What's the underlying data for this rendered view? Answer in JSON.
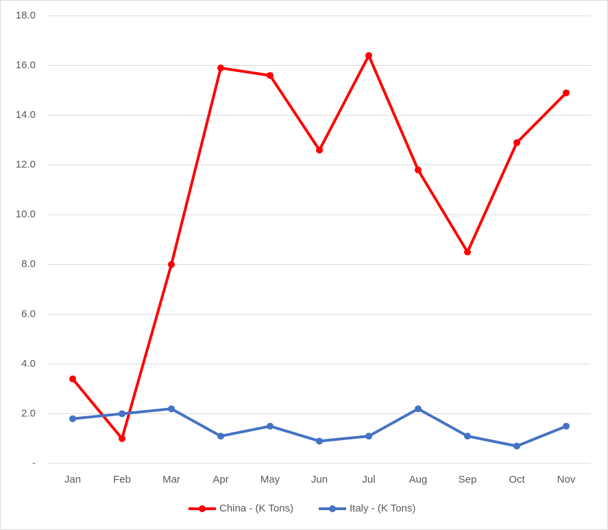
{
  "chart_data": {
    "type": "line",
    "categories": [
      "Jan",
      "Feb",
      "Mar",
      "Apr",
      "May",
      "Jun",
      "Jul",
      "Aug",
      "Sep",
      "Oct",
      "Nov"
    ],
    "series": [
      {
        "name": "China - (K Tons)",
        "color": "#ff0000",
        "values": [
          3.4,
          1.0,
          8.0,
          15.9,
          15.6,
          12.6,
          16.4,
          11.8,
          8.5,
          12.9,
          14.9
        ]
      },
      {
        "name": "Italy - (K Tons)",
        "color": "#4472c4",
        "values": [
          1.8,
          2.0,
          2.2,
          1.1,
          1.5,
          0.9,
          1.1,
          2.2,
          1.1,
          0.7,
          1.5
        ]
      }
    ],
    "ylim": [
      0,
      18
    ],
    "yticks": [
      {
        "value": 0,
        "label": "-"
      },
      {
        "value": 2,
        "label": "2.0"
      },
      {
        "value": 4,
        "label": "4.0"
      },
      {
        "value": 6,
        "label": "6.0"
      },
      {
        "value": 8,
        "label": "8.0"
      },
      {
        "value": 10,
        "label": "10.0"
      },
      {
        "value": 12,
        "label": "12.0"
      },
      {
        "value": 14,
        "label": "14.0"
      },
      {
        "value": 16,
        "label": "16.0"
      },
      {
        "value": 18,
        "label": "18.0"
      }
    ],
    "grid": true,
    "legend": "bottom"
  }
}
